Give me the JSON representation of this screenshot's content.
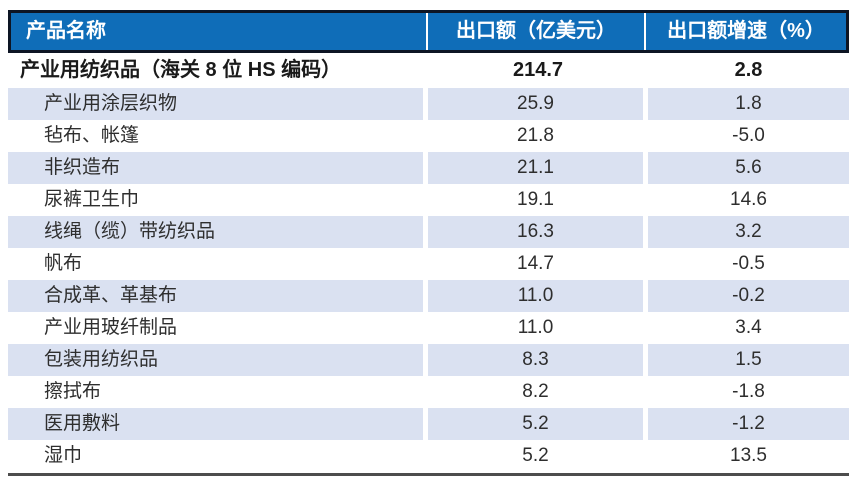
{
  "chart_data": {
    "type": "table",
    "title": "",
    "columns": [
      "产品名称",
      "出口额（亿美元）",
      "出口额增速（%）"
    ],
    "total_row": {
      "name": "产业用纺织品（海关 8 位 HS 编码）",
      "export_value": "214.7",
      "growth": "2.8"
    },
    "rows": [
      {
        "name": "产业用涂层织物",
        "export_value": "25.9",
        "growth": "1.8"
      },
      {
        "name": "毡布、帐篷",
        "export_value": "21.8",
        "growth": "-5.0"
      },
      {
        "name": "非织造布",
        "export_value": "21.1",
        "growth": "5.6"
      },
      {
        "name": "尿裤卫生巾",
        "export_value": "19.1",
        "growth": "14.6"
      },
      {
        "name": "线绳（缆）带纺织品",
        "export_value": "16.3",
        "growth": "3.2"
      },
      {
        "name": "帆布",
        "export_value": "14.7",
        "growth": "-0.5"
      },
      {
        "name": "合成革、革基布",
        "export_value": "11.0",
        "growth": "-0.2"
      },
      {
        "name": "产业用玻纤制品",
        "export_value": "11.0",
        "growth": "3.4"
      },
      {
        "name": "包装用纺织品",
        "export_value": "8.3",
        "growth": "1.5"
      },
      {
        "name": "擦拭布",
        "export_value": "8.2",
        "growth": "-1.8"
      },
      {
        "name": "医用敷料",
        "export_value": "5.2",
        "growth": "-1.2"
      },
      {
        "name": "湿巾",
        "export_value": "5.2",
        "growth": "13.5"
      }
    ]
  },
  "colors": {
    "header_bg": "#0f6db8",
    "header_text": "#ffffff",
    "header_border": "#0d1524",
    "row_shaded": "#dae1f1",
    "row_white": "#ffffff",
    "body_text": "#2e2e2e",
    "bottom_border": "#4d4d4d"
  }
}
